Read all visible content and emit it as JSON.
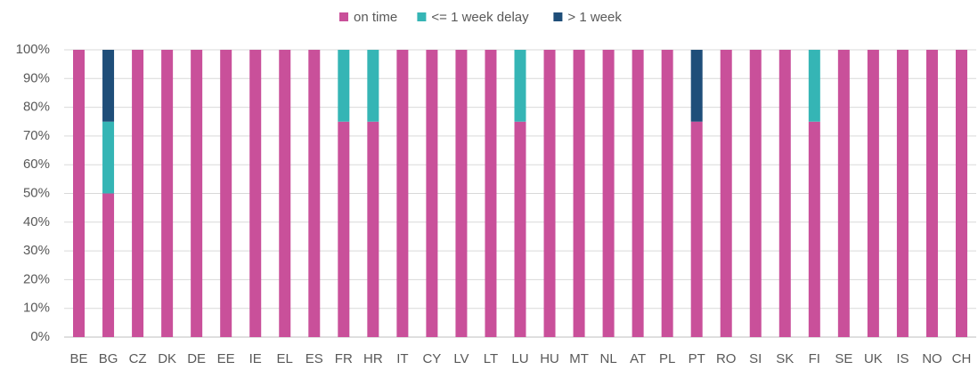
{
  "chart_data": {
    "type": "stacked_bar",
    "categories": [
      "BE",
      "BG",
      "CZ",
      "DK",
      "DE",
      "EE",
      "IE",
      "EL",
      "ES",
      "FR",
      "HR",
      "IT",
      "CY",
      "LV",
      "LT",
      "LU",
      "HU",
      "MT",
      "NL",
      "AT",
      "PL",
      "PT",
      "RO",
      "SI",
      "SK",
      "FI",
      "SE",
      "UK",
      "IS",
      "NO",
      "CH"
    ],
    "series": [
      {
        "name": "on time",
        "color": "#c9509a",
        "values": [
          100,
          50,
          100,
          100,
          100,
          100,
          100,
          100,
          100,
          75,
          75,
          100,
          100,
          100,
          100,
          75,
          100,
          100,
          100,
          100,
          100,
          75,
          100,
          100,
          100,
          75,
          100,
          100,
          100,
          100,
          100
        ]
      },
      {
        "name": "<= 1 week delay",
        "color": "#35b5b5",
        "values": [
          0,
          25,
          0,
          0,
          0,
          0,
          0,
          0,
          0,
          25,
          25,
          0,
          0,
          0,
          0,
          25,
          0,
          0,
          0,
          0,
          0,
          0,
          0,
          0,
          0,
          25,
          0,
          0,
          0,
          0,
          0
        ]
      },
      {
        "name": "> 1 week",
        "color": "#1f4e79",
        "values": [
          0,
          25,
          0,
          0,
          0,
          0,
          0,
          0,
          0,
          0,
          0,
          0,
          0,
          0,
          0,
          0,
          0,
          0,
          0,
          0,
          0,
          25,
          0,
          0,
          0,
          0,
          0,
          0,
          0,
          0,
          0
        ]
      }
    ],
    "ylim": [
      0,
      100
    ],
    "yticks": [
      {
        "value": 0,
        "label": "0%"
      },
      {
        "value": 10,
        "label": "10%"
      },
      {
        "value": 20,
        "label": "20%"
      },
      {
        "value": 30,
        "label": "30%"
      },
      {
        "value": 40,
        "label": "40%"
      },
      {
        "value": 50,
        "label": "50%"
      },
      {
        "value": 60,
        "label": "60%"
      },
      {
        "value": 70,
        "label": "70%"
      },
      {
        "value": 80,
        "label": "80%"
      },
      {
        "value": 90,
        "label": "90%"
      },
      {
        "value": 100,
        "label": "100%"
      }
    ],
    "grid": true,
    "legend": "top"
  }
}
